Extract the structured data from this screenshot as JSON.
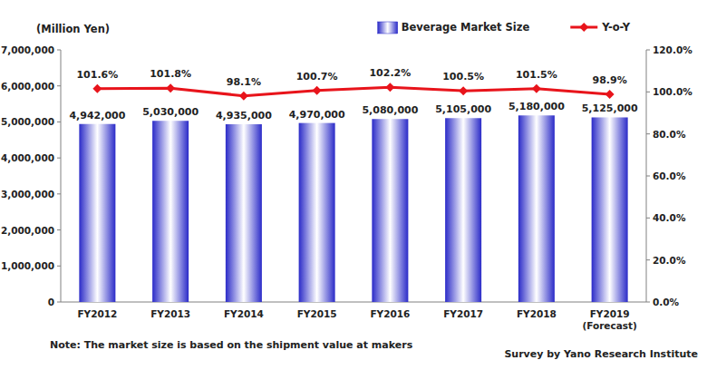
{
  "chart_data": {
    "type": "bar",
    "y_label": "(Million Yen)",
    "note": "Note: The market size is based on the shipment value at makers",
    "source": "Survey by Yano Research Institute",
    "categories": [
      "FY2012",
      "FY2013",
      "FY2014",
      "FY2015",
      "FY2016",
      "FY2017",
      "FY2018",
      "FY2019\n(Forecast)"
    ],
    "series": [
      {
        "name": "Beverage Market Size",
        "type": "bar",
        "color": "#2b2bc8",
        "values": [
          4942000,
          5030000,
          4935000,
          4970000,
          5080000,
          5105000,
          5180000,
          5125000
        ],
        "value_labels": [
          "4,942,000",
          "5,030,000",
          "4,935,000",
          "4,970,000",
          "5,080,000",
          "5,105,000",
          "5,180,000",
          "5,125,000"
        ]
      },
      {
        "name": "Y-o-Y",
        "type": "line",
        "axis": "y2",
        "color": "#e8141b",
        "marker": "diamond",
        "values": [
          101.6,
          101.8,
          98.1,
          100.7,
          102.2,
          100.5,
          101.5,
          98.9
        ],
        "value_labels": [
          "101.6%",
          "101.8%",
          "98.1%",
          "100.7%",
          "102.2%",
          "100.5%",
          "101.5%",
          "98.9%"
        ]
      }
    ],
    "ylim": [
      0,
      7000000
    ],
    "yticks": [
      0,
      {
        "value": 1000000,
        "label": "1,000,000"
      },
      {
        "value": 2000000,
        "label": "2,000,000"
      },
      {
        "value": 3000000,
        "label": "3,000,000"
      },
      {
        "value": 4000000,
        "label": "4,000,000"
      },
      {
        "value": 5000000,
        "label": "5,000,000"
      },
      {
        "value": 6000000,
        "label": "6,000,000"
      },
      {
        "value": 7000000,
        "label": "7,000,000"
      }
    ],
    "y2lim": [
      0,
      120
    ],
    "y2ticks": [
      {
        "value": 0,
        "label": "0.0%"
      },
      {
        "value": 20,
        "label": "20.0%"
      },
      {
        "value": 40,
        "label": "40.0%"
      },
      {
        "value": 60,
        "label": "60.0%"
      },
      {
        "value": 80,
        "label": "80.0%"
      },
      {
        "value": 100,
        "label": "100.0%"
      },
      {
        "value": 120,
        "label": "120.0%"
      }
    ],
    "grid": false,
    "legend": "top-right",
    "data_labels": true
  }
}
